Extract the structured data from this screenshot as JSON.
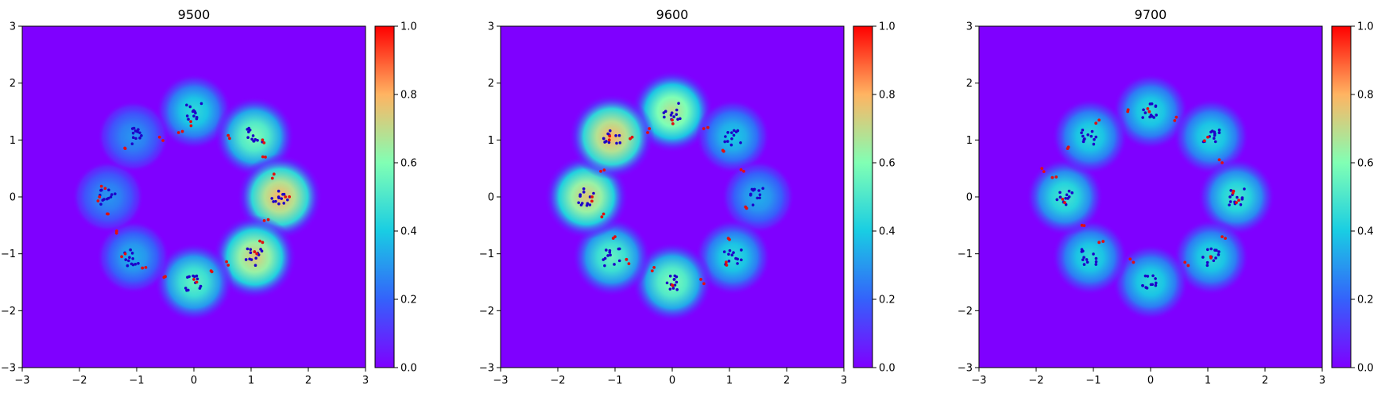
{
  "chart_data": [
    {
      "type": "heatmap",
      "title": "9500",
      "xlim": [
        -3,
        3
      ],
      "ylim": [
        -3,
        3
      ],
      "x_ticks": [
        "−3",
        "−2",
        "−1",
        "0",
        "1",
        "2",
        "3"
      ],
      "y_ticks": [
        "3",
        "2",
        "1",
        "0",
        "−1",
        "−2",
        "−3"
      ],
      "colorbar": {
        "range": [
          0,
          1
        ],
        "ticks": [
          "1.0",
          "0.8",
          "0.6",
          "0.4",
          "0.2",
          "0.0"
        ],
        "colormap": "rainbow"
      },
      "density_centers": [
        {
          "x": 0.0,
          "y": 1.5,
          "weight": 0.45
        },
        {
          "x": 1.06,
          "y": 1.06,
          "weight": 0.6
        },
        {
          "x": 1.5,
          "y": 0.0,
          "weight": 0.8
        },
        {
          "x": 1.06,
          "y": -1.06,
          "weight": 0.75
        },
        {
          "x": 0.0,
          "y": -1.5,
          "weight": 0.55
        },
        {
          "x": -1.06,
          "y": -1.06,
          "weight": 0.35
        },
        {
          "x": -1.5,
          "y": 0.0,
          "weight": 0.3
        },
        {
          "x": -1.06,
          "y": 1.06,
          "weight": 0.3
        }
      ],
      "real_points": [
        {
          "x": 0.0,
          "y": 1.5
        },
        {
          "x": 1.06,
          "y": 1.06
        },
        {
          "x": 1.5,
          "y": 0.0
        },
        {
          "x": 1.06,
          "y": -1.06
        },
        {
          "x": 0.0,
          "y": -1.5
        },
        {
          "x": -1.06,
          "y": -1.06
        },
        {
          "x": -1.5,
          "y": 0.0
        },
        {
          "x": -1.06,
          "y": 1.06
        }
      ],
      "generated_points": [
        {
          "x": -0.2,
          "y": 1.15
        },
        {
          "x": -0.05,
          "y": 1.25
        },
        {
          "x": 0.6,
          "y": 1.08
        },
        {
          "x": 1.2,
          "y": 1.0
        },
        {
          "x": 1.25,
          "y": 0.7
        },
        {
          "x": 1.4,
          "y": 0.4
        },
        {
          "x": 1.6,
          "y": 0.0
        },
        {
          "x": 1.3,
          "y": -0.4
        },
        {
          "x": 1.2,
          "y": -0.8
        },
        {
          "x": 1.1,
          "y": -1.0
        },
        {
          "x": 0.6,
          "y": -1.2
        },
        {
          "x": 0.3,
          "y": -1.3
        },
        {
          "x": 0.0,
          "y": -1.45
        },
        {
          "x": -0.5,
          "y": -1.4
        },
        {
          "x": -0.9,
          "y": -1.25
        },
        {
          "x": -1.2,
          "y": -1.0
        },
        {
          "x": -1.35,
          "y": -0.6
        },
        {
          "x": -1.5,
          "y": -0.3
        },
        {
          "x": -1.65,
          "y": 0.0
        },
        {
          "x": -1.55,
          "y": 0.15
        },
        {
          "x": -1.2,
          "y": 0.85
        },
        {
          "x": -0.6,
          "y": 1.05
        }
      ]
    },
    {
      "type": "heatmap",
      "title": "9600",
      "xlim": [
        -3,
        3
      ],
      "ylim": [
        -3,
        3
      ],
      "x_ticks": [
        "−3",
        "−2",
        "−1",
        "0",
        "1",
        "2",
        "3"
      ],
      "y_ticks": [
        "3",
        "2",
        "1",
        "0",
        "−1",
        "−2",
        "−3"
      ],
      "colorbar": {
        "range": [
          0,
          1
        ],
        "ticks": [
          "1.0",
          "0.8",
          "0.6",
          "0.4",
          "0.2",
          "0.0"
        ],
        "colormap": "rainbow"
      },
      "density_centers": [
        {
          "x": 0.0,
          "y": 1.5,
          "weight": 0.7
        },
        {
          "x": 1.06,
          "y": 1.06,
          "weight": 0.4
        },
        {
          "x": 1.5,
          "y": 0.0,
          "weight": 0.35
        },
        {
          "x": 1.06,
          "y": -1.06,
          "weight": 0.45
        },
        {
          "x": 0.0,
          "y": -1.5,
          "weight": 0.6
        },
        {
          "x": -1.06,
          "y": -1.06,
          "weight": 0.55
        },
        {
          "x": -1.5,
          "y": 0.0,
          "weight": 0.75
        },
        {
          "x": -1.06,
          "y": 1.06,
          "weight": 0.8
        }
      ],
      "real_points": [
        {
          "x": 0.0,
          "y": 1.5
        },
        {
          "x": 1.06,
          "y": 1.06
        },
        {
          "x": 1.5,
          "y": 0.0
        },
        {
          "x": 1.06,
          "y": -1.06
        },
        {
          "x": 0.0,
          "y": -1.5
        },
        {
          "x": -1.06,
          "y": -1.06
        },
        {
          "x": -1.5,
          "y": 0.0
        },
        {
          "x": -1.06,
          "y": 1.06
        }
      ],
      "generated_points": [
        {
          "x": -0.4,
          "y": 1.2
        },
        {
          "x": 0.0,
          "y": 1.35
        },
        {
          "x": 0.55,
          "y": 1.2
        },
        {
          "x": 0.9,
          "y": 0.8
        },
        {
          "x": 1.25,
          "y": 0.45
        },
        {
          "x": 1.3,
          "y": -0.2
        },
        {
          "x": 1.0,
          "y": -0.75
        },
        {
          "x": 0.95,
          "y": -1.2
        },
        {
          "x": 0.5,
          "y": -1.45
        },
        {
          "x": 0.0,
          "y": -1.55
        },
        {
          "x": -0.35,
          "y": -1.3
        },
        {
          "x": -0.8,
          "y": -1.1
        },
        {
          "x": -1.0,
          "y": -0.7
        },
        {
          "x": -1.2,
          "y": -0.3
        },
        {
          "x": -1.4,
          "y": 0.0
        },
        {
          "x": -1.25,
          "y": 0.45
        },
        {
          "x": -1.1,
          "y": 1.0
        },
        {
          "x": -0.7,
          "y": 1.05
        }
      ]
    },
    {
      "type": "heatmap",
      "title": "9700",
      "xlim": [
        -3,
        3
      ],
      "ylim": [
        -3,
        3
      ],
      "x_ticks": [
        "−3",
        "−2",
        "−1",
        "0",
        "1",
        "2",
        "3"
      ],
      "y_ticks": [
        "3",
        "2",
        "1",
        "0",
        "−1",
        "−2",
        "−3"
      ],
      "colorbar": {
        "range": [
          0,
          1
        ],
        "ticks": [
          "1.0",
          "0.8",
          "0.6",
          "0.4",
          "0.2",
          "0.0"
        ],
        "colormap": "rainbow"
      },
      "density_centers": [
        {
          "x": 0.0,
          "y": 1.5,
          "weight": 0.45
        },
        {
          "x": 1.06,
          "y": 1.06,
          "weight": 0.45
        },
        {
          "x": 1.5,
          "y": 0.0,
          "weight": 0.5
        },
        {
          "x": 1.06,
          "y": -1.06,
          "weight": 0.45
        },
        {
          "x": 0.0,
          "y": -1.5,
          "weight": 0.45
        },
        {
          "x": -1.06,
          "y": -1.06,
          "weight": 0.45
        },
        {
          "x": -1.5,
          "y": 0.0,
          "weight": 0.5
        },
        {
          "x": -1.06,
          "y": 1.06,
          "weight": 0.45
        }
      ],
      "real_points": [
        {
          "x": 0.0,
          "y": 1.5
        },
        {
          "x": 1.06,
          "y": 1.06
        },
        {
          "x": 1.5,
          "y": 0.0
        },
        {
          "x": 1.06,
          "y": -1.06
        },
        {
          "x": 0.0,
          "y": -1.5
        },
        {
          "x": -1.06,
          "y": -1.06
        },
        {
          "x": -1.5,
          "y": 0.0
        },
        {
          "x": -1.06,
          "y": 1.06
        }
      ],
      "generated_points": [
        {
          "x": -0.4,
          "y": 1.5
        },
        {
          "x": -0.05,
          "y": 1.55
        },
        {
          "x": 0.45,
          "y": 1.4
        },
        {
          "x": 1.0,
          "y": 1.05
        },
        {
          "x": 1.25,
          "y": 0.6
        },
        {
          "x": 1.45,
          "y": 0.1
        },
        {
          "x": 1.5,
          "y": -0.1
        },
        {
          "x": 1.25,
          "y": -0.7
        },
        {
          "x": 1.05,
          "y": -1.05
        },
        {
          "x": 0.6,
          "y": -1.15
        },
        {
          "x": -0.3,
          "y": -1.15
        },
        {
          "x": -0.9,
          "y": -0.8
        },
        {
          "x": -1.2,
          "y": -0.5
        },
        {
          "x": -1.5,
          "y": -0.1
        },
        {
          "x": -1.65,
          "y": 0.35
        },
        {
          "x": -1.9,
          "y": 0.5
        },
        {
          "x": -1.45,
          "y": 0.85
        },
        {
          "x": -0.9,
          "y": 1.35
        }
      ]
    }
  ]
}
